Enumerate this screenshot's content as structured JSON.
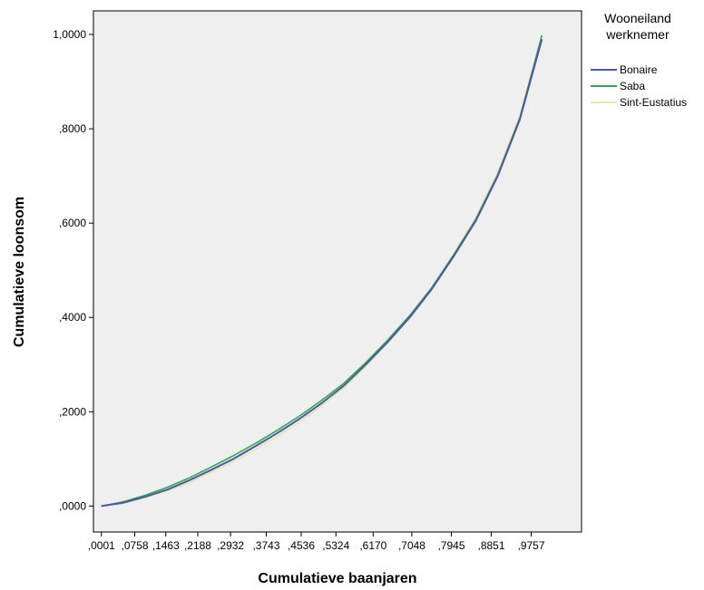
{
  "chart_data": {
    "type": "line",
    "xlabel": "Cumulatieve baanjaren",
    "ylabel": "Cumulatieve loonsom",
    "xlim": [
      -0.018,
      1.09
    ],
    "ylim": [
      -0.055,
      1.05
    ],
    "x_ticks": [
      {
        "value": 0.0001,
        "label": ",0001"
      },
      {
        "value": 0.0758,
        "label": ",0758"
      },
      {
        "value": 0.1463,
        "label": ",1463"
      },
      {
        "value": 0.2188,
        "label": ",2188"
      },
      {
        "value": 0.2932,
        "label": ",2932"
      },
      {
        "value": 0.3743,
        "label": ",3743"
      },
      {
        "value": 0.4536,
        "label": ",4536"
      },
      {
        "value": 0.5324,
        "label": ",5324"
      },
      {
        "value": 0.617,
        "label": ",6170"
      },
      {
        "value": 0.7048,
        "label": ",7048"
      },
      {
        "value": 0.7945,
        "label": ",7945"
      },
      {
        "value": 0.8851,
        "label": ",8851"
      },
      {
        "value": 0.9757,
        "label": ",9757"
      }
    ],
    "y_ticks": [
      {
        "value": 0.0,
        "label": ",0000"
      },
      {
        "value": 0.2,
        "label": ",2000"
      },
      {
        "value": 0.4,
        "label": ",4000"
      },
      {
        "value": 0.6,
        "label": ",6000"
      },
      {
        "value": 0.8,
        "label": ",8000"
      },
      {
        "value": 1.0,
        "label": "1,0000"
      }
    ],
    "grid": false,
    "legend": {
      "title": "Wooneiland werknemer",
      "title_lines": [
        "Wooneiland",
        "werknemer"
      ],
      "placement": "right"
    },
    "series": [
      {
        "name": "Bonaire",
        "color": "#4a5aa8",
        "x": [
          0.0001,
          0.05,
          0.1,
          0.15,
          0.2,
          0.25,
          0.3,
          0.35,
          0.4,
          0.45,
          0.5,
          0.55,
          0.6,
          0.65,
          0.7,
          0.75,
          0.8,
          0.85,
          0.9,
          0.95,
          1.0
        ],
        "y": [
          0.0,
          0.007,
          0.02,
          0.035,
          0.055,
          0.077,
          0.1,
          0.127,
          0.155,
          0.185,
          0.218,
          0.255,
          0.3,
          0.348,
          0.4,
          0.46,
          0.53,
          0.605,
          0.7,
          0.82,
          0.99
        ]
      },
      {
        "name": "Saba",
        "color": "#2fa84f",
        "x": [
          0.0001,
          0.05,
          0.1,
          0.15,
          0.2,
          0.25,
          0.3,
          0.35,
          0.4,
          0.45,
          0.5,
          0.55,
          0.6,
          0.65,
          0.7,
          0.75,
          0.8,
          0.85,
          0.9,
          0.95,
          1.0
        ],
        "y": [
          0.0,
          0.009,
          0.023,
          0.04,
          0.06,
          0.083,
          0.107,
          0.133,
          0.161,
          0.191,
          0.224,
          0.26,
          0.304,
          0.352,
          0.404,
          0.463,
          0.533,
          0.608,
          0.703,
          0.823,
          0.998
        ]
      },
      {
        "name": "Sint-Eustatius",
        "color": "#e0e8b0",
        "x": [
          0.0001,
          0.05,
          0.1,
          0.15,
          0.2,
          0.25,
          0.3,
          0.35,
          0.4,
          0.45,
          0.5,
          0.55,
          0.6,
          0.65,
          0.7,
          0.75,
          0.8,
          0.85,
          0.9,
          0.95,
          1.0
        ],
        "y": [
          0.0,
          0.006,
          0.018,
          0.032,
          0.05,
          0.072,
          0.094,
          0.12,
          0.148,
          0.178,
          0.212,
          0.25,
          0.296,
          0.346,
          0.4,
          0.463,
          0.535,
          0.612,
          0.708,
          0.828,
          0.999
        ]
      }
    ]
  }
}
